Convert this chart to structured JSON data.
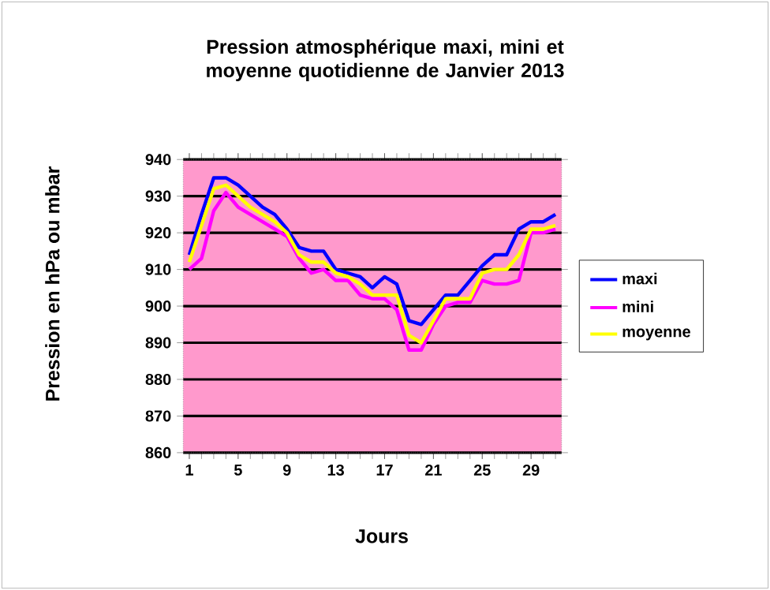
{
  "chart_data": {
    "type": "line",
    "title": "Pression atmosphérique maxi, mini et moyenne quotidienne de Janvier 2013",
    "xlabel": "Jours",
    "ylabel": "Pression en hPa ou mbar",
    "x": [
      1,
      2,
      3,
      4,
      5,
      6,
      7,
      8,
      9,
      10,
      11,
      12,
      13,
      14,
      15,
      16,
      17,
      18,
      19,
      20,
      21,
      22,
      23,
      24,
      25,
      26,
      27,
      28,
      29,
      30,
      31
    ],
    "xlim": [
      0.5,
      31.5
    ],
    "xticks": [
      1,
      5,
      9,
      13,
      17,
      21,
      25,
      29
    ],
    "ylim": [
      860,
      940
    ],
    "yticks": [
      860,
      870,
      880,
      890,
      900,
      910,
      920,
      930,
      940
    ],
    "grid": "y",
    "legend": "right",
    "marker": "none",
    "line_style": "solid",
    "series": [
      {
        "name": "maxi",
        "color": "#0000ff",
        "values": [
          914,
          925,
          935,
          935,
          933,
          930,
          927,
          925,
          921,
          916,
          915,
          915,
          910,
          909,
          908,
          905,
          908,
          906,
          896,
          895,
          899,
          903,
          903,
          907,
          911,
          914,
          914,
          921,
          923,
          923,
          925
        ]
      },
      {
        "name": "mini",
        "color": "#ff00ff",
        "values": [
          910,
          913,
          926,
          931,
          927,
          925,
          923,
          921,
          919,
          913,
          909,
          910,
          907,
          907,
          903,
          902,
          902,
          899,
          888,
          888,
          895,
          900,
          901,
          901,
          907,
          906,
          906,
          907,
          920,
          920,
          921
        ]
      },
      {
        "name": "moyenne",
        "color": "#ffff00",
        "values": [
          912,
          922,
          932,
          933,
          930,
          927,
          925,
          923,
          920,
          914,
          912,
          912,
          909,
          908,
          906,
          903,
          903,
          903,
          892,
          890,
          896,
          902,
          902,
          902,
          909,
          910,
          910,
          914,
          921,
          921,
          922
        ]
      }
    ]
  }
}
